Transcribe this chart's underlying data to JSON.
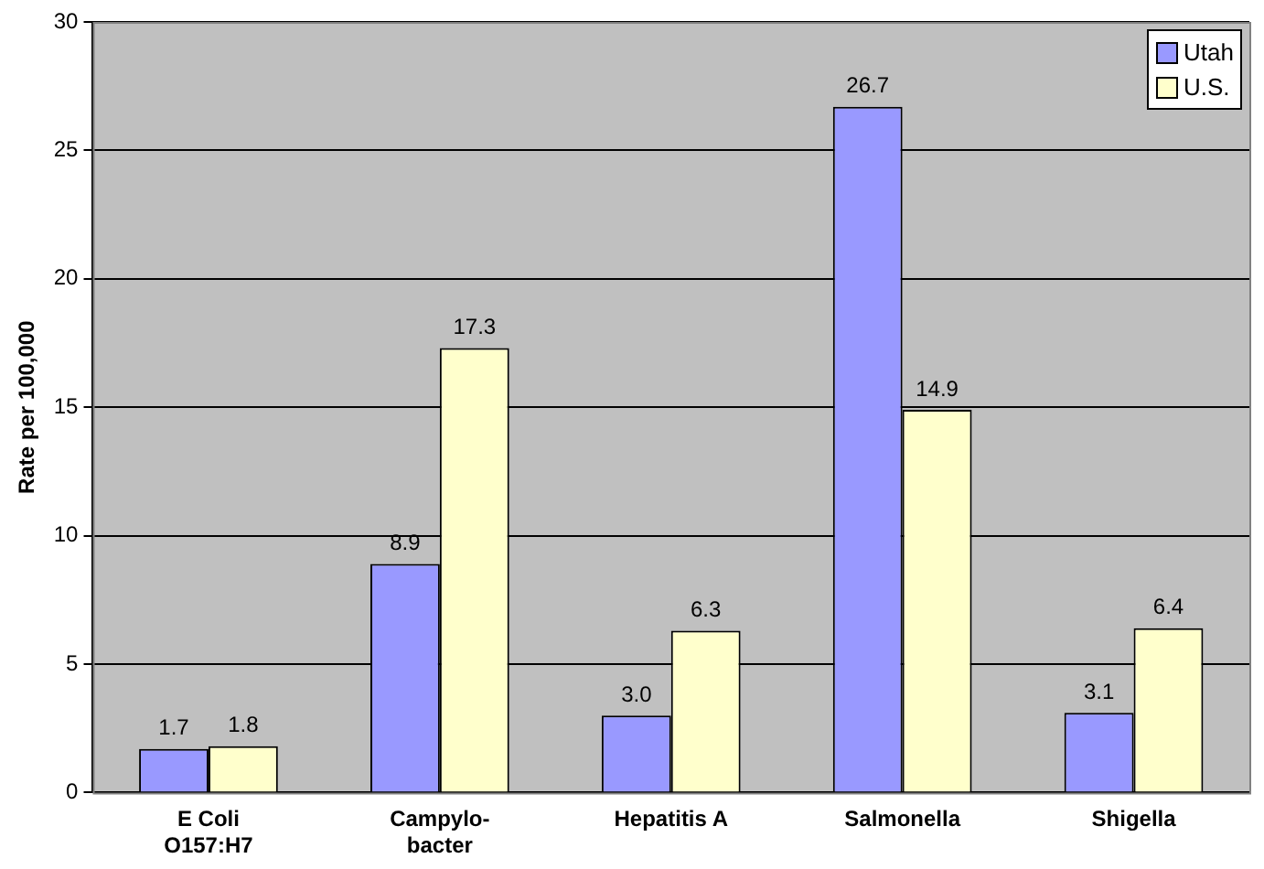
{
  "chart_data": {
    "type": "bar",
    "ylabel": "Rate per 100,000",
    "categories": [
      "E Coli\nO157:H7",
      "Campylo-\nbacter",
      "Hepatitis A",
      "Salmonella",
      "Shigella"
    ],
    "series": [
      {
        "name": "Utah",
        "color": "#9999ff",
        "values": [
          1.7,
          8.9,
          3.0,
          26.7,
          3.1
        ],
        "value_labels": [
          "1.7",
          "8.9",
          "3.0",
          "26.7",
          "3.1"
        ]
      },
      {
        "name": "U.S.",
        "color": "#ffffcc",
        "values": [
          1.8,
          17.3,
          6.3,
          14.9,
          6.4
        ],
        "value_labels": [
          "1.8",
          "17.3",
          "6.3",
          "14.9",
          "6.4"
        ]
      }
    ],
    "ylim": [
      0,
      30
    ],
    "yticks": [
      0,
      5,
      10,
      15,
      20,
      25,
      30
    ],
    "grid": "y",
    "legend": "top right"
  }
}
